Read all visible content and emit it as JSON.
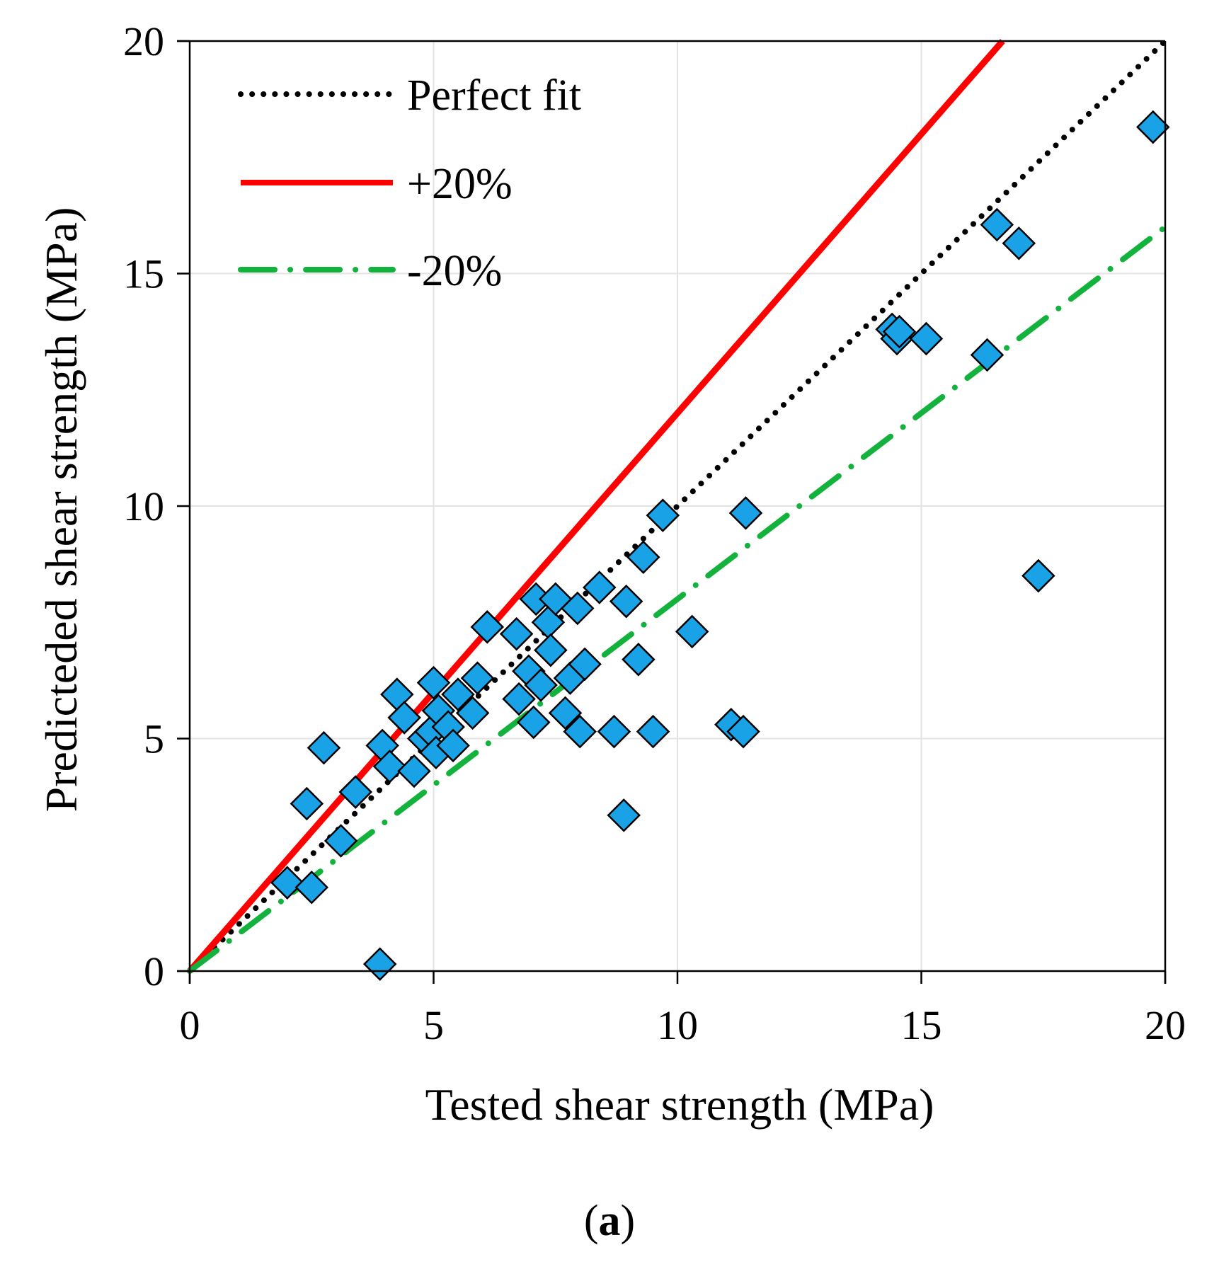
{
  "chart_data": {
    "type": "scatter",
    "xlabel": "Tested shear strength (MPa)",
    "ylabel": "Predicteded shear strength (MPa)",
    "xlim": [
      0,
      20
    ],
    "ylim": [
      0,
      20
    ],
    "xticks": [
      "0",
      "5",
      "10",
      "15",
      "20"
    ],
    "yticks": [
      "0",
      "5",
      "10",
      "15",
      "20"
    ],
    "grid": true,
    "legend_position": "top-left",
    "lines": [
      {
        "name": "Perfect fit",
        "slope": 1.0,
        "style": "dotted",
        "color": "#000000"
      },
      {
        "name": "+20%",
        "slope": 1.2,
        "style": "solid",
        "color": "#ff0000"
      },
      {
        "name": "-20%",
        "slope": 0.8,
        "style": "dash-dot",
        "color": "#12b23c"
      }
    ],
    "marker": {
      "shape": "diamond",
      "fill": "#1aa2e6",
      "stroke": "#000000"
    },
    "points": [
      [
        2.0,
        1.9
      ],
      [
        2.4,
        3.6
      ],
      [
        2.5,
        1.8
      ],
      [
        2.75,
        4.8
      ],
      [
        3.1,
        2.8
      ],
      [
        3.4,
        3.85
      ],
      [
        3.9,
        0.15
      ],
      [
        3.95,
        4.85
      ],
      [
        4.1,
        4.4
      ],
      [
        4.25,
        5.95
      ],
      [
        4.4,
        5.45
      ],
      [
        4.6,
        4.3
      ],
      [
        4.8,
        5.0
      ],
      [
        4.95,
        5.15
      ],
      [
        5.0,
        6.2
      ],
      [
        5.05,
        4.7
      ],
      [
        5.1,
        5.6
      ],
      [
        5.3,
        5.25
      ],
      [
        5.4,
        4.85
      ],
      [
        5.5,
        5.95
      ],
      [
        5.8,
        5.55
      ],
      [
        5.9,
        6.3
      ],
      [
        6.1,
        7.4
      ],
      [
        6.7,
        7.25
      ],
      [
        6.75,
        5.85
      ],
      [
        6.95,
        6.45
      ],
      [
        7.05,
        5.35
      ],
      [
        7.1,
        8.0
      ],
      [
        7.2,
        6.15
      ],
      [
        7.35,
        7.5
      ],
      [
        7.4,
        6.9
      ],
      [
        7.5,
        8.0
      ],
      [
        7.7,
        5.55
      ],
      [
        7.8,
        6.3
      ],
      [
        7.95,
        7.8
      ],
      [
        8.0,
        5.15
      ],
      [
        8.1,
        6.6
      ],
      [
        8.4,
        8.25
      ],
      [
        8.7,
        5.15
      ],
      [
        8.9,
        3.35
      ],
      [
        8.95,
        7.95
      ],
      [
        9.2,
        6.7
      ],
      [
        9.3,
        8.9
      ],
      [
        9.5,
        5.15
      ],
      [
        9.7,
        9.8
      ],
      [
        10.3,
        7.3
      ],
      [
        11.1,
        5.3
      ],
      [
        11.35,
        5.15
      ],
      [
        11.4,
        9.85
      ],
      [
        14.4,
        13.8
      ],
      [
        14.5,
        13.6
      ],
      [
        14.55,
        13.75
      ],
      [
        15.1,
        13.6
      ],
      [
        16.35,
        13.25
      ],
      [
        16.55,
        16.05
      ],
      [
        17.0,
        15.65
      ],
      [
        17.4,
        8.5
      ],
      [
        19.75,
        18.15
      ]
    ]
  },
  "caption": {
    "open": "(",
    "letter": "a",
    "close": ")"
  }
}
